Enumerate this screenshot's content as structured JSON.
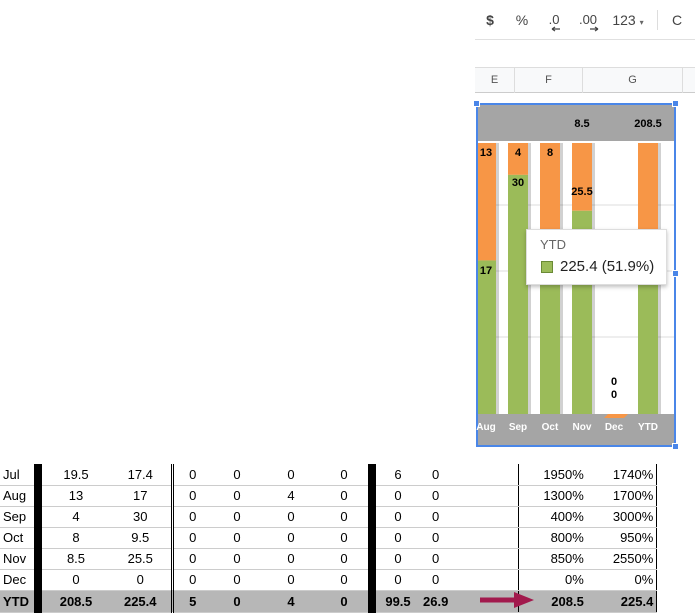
{
  "toolbar": {
    "currency": "$",
    "percent": "%",
    "decrease_decimals": ".0",
    "increase_decimals": ".00",
    "more_formats": "123",
    "font_partial": "C"
  },
  "columns": {
    "e": "E",
    "f": "F",
    "g": "G"
  },
  "chart_data": {
    "type": "bar",
    "stacked": true,
    "categories": [
      "Jul",
      "Aug",
      "Sep",
      "Oct",
      "Nov",
      "Dec",
      "YTD"
    ],
    "series": [
      {
        "color": "#9bbb59",
        "values": [
          17.4,
          17,
          30,
          9.5,
          25.5,
          0,
          225.4
        ]
      },
      {
        "color": "#f79646",
        "values": [
          19.5,
          13,
          4,
          8,
          8.5,
          0,
          208.5
        ]
      }
    ],
    "visible_categories": [
      "Aug",
      "Sep",
      "Oct",
      "Nov",
      "Dec",
      "YTD"
    ],
    "data_labels": {
      "green": [
        "17",
        "30",
        "",
        "25.5",
        "0",
        ""
      ],
      "orange": [
        "13",
        "4",
        "8",
        "8.5",
        "0",
        "208.5"
      ]
    }
  },
  "tooltip": {
    "title": "YTD",
    "value": "225.4 (51.9%)",
    "color": "#9bbb59"
  },
  "table": {
    "rows": [
      {
        "month": "Jul",
        "a": "19.5",
        "b": "17.4",
        "c": "0",
        "d": "0",
        "e": "0",
        "f": "0",
        "g": "6",
        "h": "0",
        "p1": "1950%",
        "p2": "1740%"
      },
      {
        "month": "Aug",
        "a": "13",
        "b": "17",
        "c": "0",
        "d": "0",
        "e": "4",
        "f": "0",
        "g": "0",
        "h": "0",
        "p1": "1300%",
        "p2": "1700%"
      },
      {
        "month": "Sep",
        "a": "4",
        "b": "30",
        "c": "0",
        "d": "0",
        "e": "0",
        "f": "0",
        "g": "0",
        "h": "0",
        "p1": "400%",
        "p2": "3000%"
      },
      {
        "month": "Oct",
        "a": "8",
        "b": "9.5",
        "c": "0",
        "d": "0",
        "e": "0",
        "f": "0",
        "g": "0",
        "h": "0",
        "p1": "800%",
        "p2": "950%"
      },
      {
        "month": "Nov",
        "a": "8.5",
        "b": "25.5",
        "c": "0",
        "d": "0",
        "e": "0",
        "f": "0",
        "g": "0",
        "h": "0",
        "p1": "850%",
        "p2": "2550%"
      },
      {
        "month": "Dec",
        "a": "0",
        "b": "0",
        "c": "0",
        "d": "0",
        "e": "0",
        "f": "0",
        "g": "0",
        "h": "0",
        "p1": "0%",
        "p2": "0%"
      }
    ],
    "total": {
      "month": "YTD",
      "a": "208.5",
      "b": "225.4",
      "c": "5",
      "d": "0",
      "e": "4",
      "f": "0",
      "g": "99.5",
      "h": "26.9",
      "p1": "208.5",
      "p2": "225.4"
    }
  }
}
